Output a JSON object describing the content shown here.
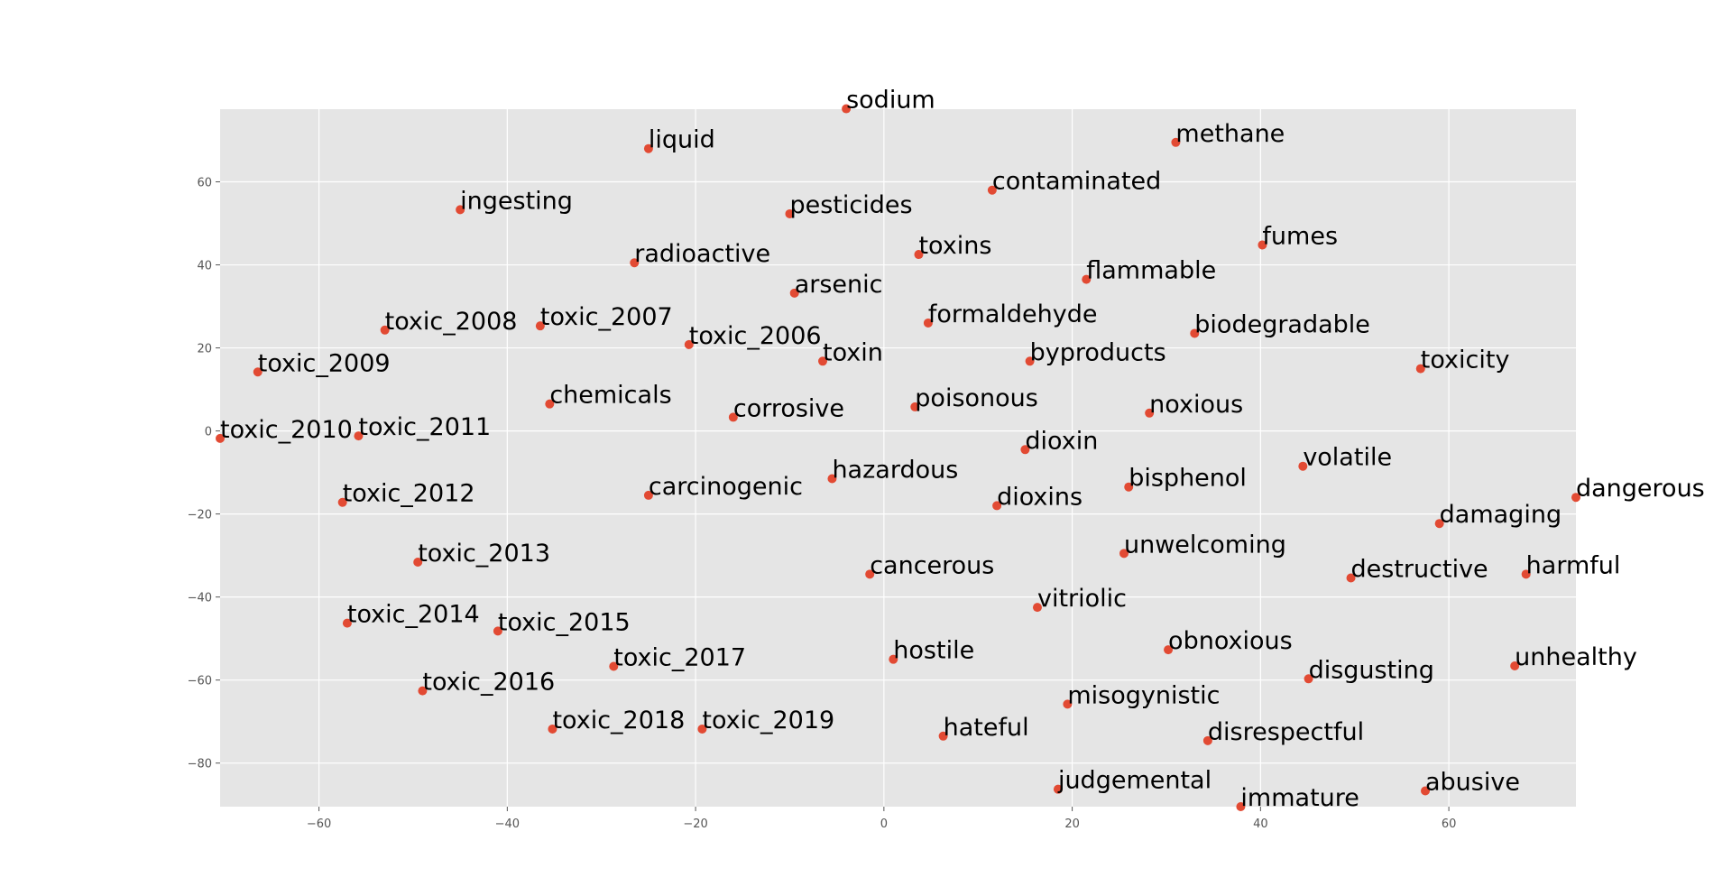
{
  "chart_data": {
    "type": "scatter",
    "title": "",
    "xlabel": "",
    "ylabel": "",
    "xlim": [
      -70.5,
      73.5
    ],
    "ylim": [
      -90.5,
      77.5
    ],
    "xticks": [
      -60,
      -40,
      -20,
      0,
      20,
      40,
      60
    ],
    "yticks": [
      -80,
      -60,
      -40,
      -20,
      0,
      20,
      40,
      60
    ],
    "xtick_labels": [
      "−60",
      "−40",
      "−20",
      "0",
      "20",
      "40",
      "60"
    ],
    "ytick_labels": [
      "−80",
      "−60",
      "−40",
      "−20",
      "0",
      "20",
      "40",
      "60"
    ],
    "grid": true,
    "colors": {
      "background": "#e5e5e5",
      "grid": "#ffffff",
      "point": "#e24a33",
      "label": "#000000"
    },
    "points": [
      {
        "label": "sodium",
        "x": -4,
        "y": 77.6
      },
      {
        "label": "liquid",
        "x": -25,
        "y": 68
      },
      {
        "label": "methane",
        "x": 31,
        "y": 69.5
      },
      {
        "label": "ingesting",
        "x": -45,
        "y": 53.3
      },
      {
        "label": "pesticides",
        "x": -10,
        "y": 52.3
      },
      {
        "label": "contaminated",
        "x": 11.5,
        "y": 58
      },
      {
        "label": "radioactive",
        "x": -26.5,
        "y": 40.5
      },
      {
        "label": "toxins",
        "x": 3.7,
        "y": 42.5
      },
      {
        "label": "fumes",
        "x": 40.2,
        "y": 44.8
      },
      {
        "label": "flammable",
        "x": 21.5,
        "y": 36.5
      },
      {
        "label": "arsenic",
        "x": -9.5,
        "y": 33.2
      },
      {
        "label": "toxic_2008",
        "x": -53,
        "y": 24.3
      },
      {
        "label": "toxic_2007",
        "x": -36.5,
        "y": 25.3
      },
      {
        "label": "formaldehyde",
        "x": 4.7,
        "y": 26
      },
      {
        "label": "biodegradable",
        "x": 33,
        "y": 23.5
      },
      {
        "label": "toxic_2006",
        "x": -20.7,
        "y": 20.8
      },
      {
        "label": "toxin",
        "x": -6.5,
        "y": 16.8
      },
      {
        "label": "byproducts",
        "x": 15.5,
        "y": 16.8
      },
      {
        "label": "toxic_2009",
        "x": -66.5,
        "y": 14.2
      },
      {
        "label": "toxicity",
        "x": 57,
        "y": 15
      },
      {
        "label": "chemicals",
        "x": -35.5,
        "y": 6.5
      },
      {
        "label": "corrosive",
        "x": -16,
        "y": 3.3
      },
      {
        "label": "poisonous",
        "x": 3.3,
        "y": 5.8
      },
      {
        "label": "noxious",
        "x": 28.2,
        "y": 4.3
      },
      {
        "label": "toxic_2010",
        "x": -70.5,
        "y": -1.8
      },
      {
        "label": "toxic_2011",
        "x": -55.8,
        "y": -1.2
      },
      {
        "label": "dioxin",
        "x": 15,
        "y": -4.5
      },
      {
        "label": "volatile",
        "x": 44.5,
        "y": -8.5
      },
      {
        "label": "hazardous",
        "x": -5.5,
        "y": -11.5
      },
      {
        "label": "carcinogenic",
        "x": -25,
        "y": -15.5
      },
      {
        "label": "bisphenol",
        "x": 26,
        "y": -13.5
      },
      {
        "label": "dangerous",
        "x": 73.5,
        "y": -16
      },
      {
        "label": "toxic_2012",
        "x": -57.5,
        "y": -17.2
      },
      {
        "label": "dioxins",
        "x": 12,
        "y": -18
      },
      {
        "label": "damaging",
        "x": 59,
        "y": -22.3
      },
      {
        "label": "unwelcoming",
        "x": 25.5,
        "y": -29.5
      },
      {
        "label": "toxic_2013",
        "x": -49.5,
        "y": -31.6
      },
      {
        "label": "cancerous",
        "x": -1.5,
        "y": -34.5
      },
      {
        "label": "destructive",
        "x": 49.6,
        "y": -35.4
      },
      {
        "label": "harmful",
        "x": 68.2,
        "y": -34.5
      },
      {
        "label": "vitriolic",
        "x": 16.3,
        "y": -42.5
      },
      {
        "label": "toxic_2014",
        "x": -57,
        "y": -46.3
      },
      {
        "label": "toxic_2015",
        "x": -41,
        "y": -48.2
      },
      {
        "label": "obnoxious",
        "x": 30.2,
        "y": -52.7
      },
      {
        "label": "hostile",
        "x": 1,
        "y": -55
      },
      {
        "label": "toxic_2017",
        "x": -28.7,
        "y": -56.7
      },
      {
        "label": "unhealthy",
        "x": 67,
        "y": -56.6
      },
      {
        "label": "disgusting",
        "x": 45.1,
        "y": -59.7
      },
      {
        "label": "toxic_2016",
        "x": -49,
        "y": -62.6
      },
      {
        "label": "misogynistic",
        "x": 19.5,
        "y": -65.8
      },
      {
        "label": "toxic_2018",
        "x": -35.2,
        "y": -71.8
      },
      {
        "label": "toxic_2019",
        "x": -19.3,
        "y": -71.8
      },
      {
        "label": "hateful",
        "x": 6.3,
        "y": -73.5
      },
      {
        "label": "disrespectful",
        "x": 34.4,
        "y": -74.6
      },
      {
        "label": "judgemental",
        "x": 18.5,
        "y": -86.3
      },
      {
        "label": "abusive",
        "x": 57.5,
        "y": -86.7
      },
      {
        "label": "immature",
        "x": 37.9,
        "y": -90.5
      }
    ]
  }
}
